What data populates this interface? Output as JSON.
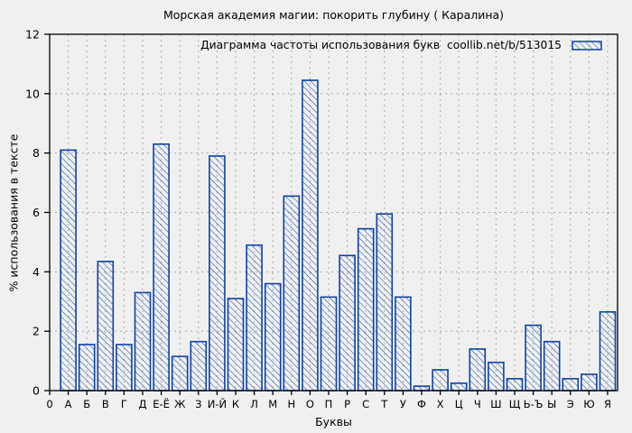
{
  "page": {
    "background_color": "#f0f0f0",
    "frame_color": "#000000"
  },
  "chart_data": {
    "type": "bar",
    "title": "Морская академия магии: покорить глубину ( Каралина)",
    "legend_label": "Диаграмма частоты использования букв  coollib.net/b/513015",
    "legend_position": "top-right",
    "xlabel": "Буквы",
    "ylabel": "% использования в тексте",
    "origin_label": "0",
    "ylim": [
      0,
      12
    ],
    "ytick_step": 2,
    "ytick_labels": [
      "0",
      "2",
      "4",
      "6",
      "8",
      "10",
      "12"
    ],
    "grid": true,
    "grid_color": "#a8a8a8",
    "bar_color": "#0d41a5",
    "bar_fill": "hatch-diagonal",
    "categories": [
      "А",
      "Б",
      "В",
      "Г",
      "Д",
      "Е-Ё",
      "Ж",
      "З",
      "И-Й",
      "К",
      "Л",
      "М",
      "Н",
      "О",
      "П",
      "Р",
      "С",
      "Т",
      "У",
      "Ф",
      "Х",
      "Ц",
      "Ч",
      "Ш",
      "Щ",
      "Ь-Ъ",
      "Ы",
      "Э",
      "Ю",
      "Я"
    ],
    "values": [
      8.1,
      1.55,
      4.35,
      1.55,
      3.3,
      8.3,
      1.15,
      1.65,
      7.9,
      3.1,
      4.9,
      3.6,
      6.55,
      10.45,
      3.15,
      4.55,
      5.45,
      5.95,
      3.15,
      0.15,
      0.7,
      0.25,
      1.4,
      0.95,
      0.4,
      2.2,
      1.65,
      0.4,
      0.55,
      2.65
    ]
  }
}
